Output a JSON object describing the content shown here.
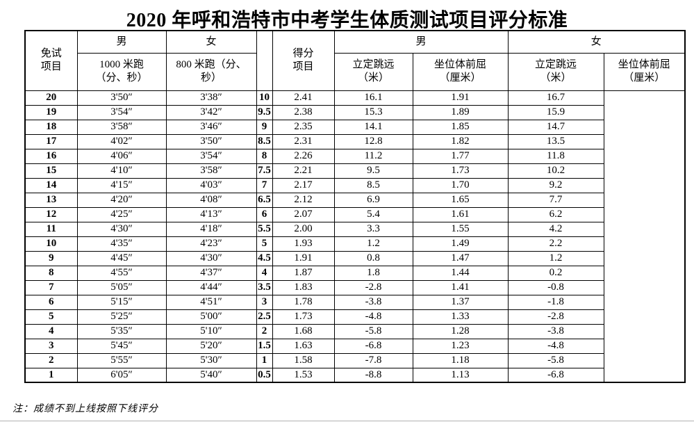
{
  "title": "2020 年呼和浩特市中考学生体质测试项目评分标准",
  "note": "注：成绩不到上线按照下线评分",
  "colors": {
    "text": "#000000",
    "border": "#000000",
    "background": "#ffffff",
    "bottom_rule": "#b3b3b3"
  },
  "left_table": {
    "corner_header": "免试\n项目",
    "gender_headers": [
      "男",
      "女"
    ],
    "sub_headers": [
      "1000 米跑\n（分、秒）",
      "800 米跑（分、\n秒）"
    ],
    "rows": [
      [
        "20",
        "3'50″",
        "3'38″"
      ],
      [
        "19",
        "3'54″",
        "3'42″"
      ],
      [
        "18",
        "3'58″",
        "3'46″"
      ],
      [
        "17",
        "4'02″",
        "3'50″"
      ],
      [
        "16",
        "4'06″",
        "3'54″"
      ],
      [
        "15",
        "4'10″",
        "3'58″"
      ],
      [
        "14",
        "4'15″",
        "4'03″"
      ],
      [
        "13",
        "4'20″",
        "4'08″"
      ],
      [
        "12",
        "4'25″",
        "4'13″"
      ],
      [
        "11",
        "4'30″",
        "4'18″"
      ],
      [
        "10",
        "4'35″",
        "4'23″"
      ],
      [
        "9",
        "4'45″",
        "4'30″"
      ],
      [
        "8",
        "4'55″",
        "4'37″"
      ],
      [
        "7",
        "5'05″",
        "4'44″"
      ],
      [
        "6",
        "5'15″",
        "4'51″"
      ],
      [
        "5",
        "5'25″",
        "5'00″"
      ],
      [
        "4",
        "5'35″",
        "5'10″"
      ],
      [
        "3",
        "5'45″",
        "5'20″"
      ],
      [
        "2",
        "5'55″",
        "5'30″"
      ],
      [
        "1",
        "6'05″",
        "5'40″"
      ]
    ]
  },
  "right_table": {
    "corner_header": "得分\n项目",
    "gender_headers": [
      "男",
      "女"
    ],
    "sub_headers": [
      "立定跳远\n（米）",
      "坐位体前屈\n（厘米）",
      "立定跳远\n（米）",
      "坐位体前屈\n（厘米）"
    ],
    "rows": [
      [
        "10",
        "2.41",
        "16.1",
        "1.91",
        "16.7"
      ],
      [
        "9.5",
        "2.38",
        "15.3",
        "1.89",
        "15.9"
      ],
      [
        "9",
        "2.35",
        "14.1",
        "1.85",
        "14.7"
      ],
      [
        "8.5",
        "2.31",
        "12.8",
        "1.82",
        "13.5"
      ],
      [
        "8",
        "2.26",
        "11.2",
        "1.77",
        "11.8"
      ],
      [
        "7.5",
        "2.21",
        "9.5",
        "1.73",
        "10.2"
      ],
      [
        "7",
        "2.17",
        "8.5",
        "1.70",
        "9.2"
      ],
      [
        "6.5",
        "2.12",
        "6.9",
        "1.65",
        "7.7"
      ],
      [
        "6",
        "2.07",
        "5.4",
        "1.61",
        "6.2"
      ],
      [
        "5.5",
        "2.00",
        "3.3",
        "1.55",
        "4.2"
      ],
      [
        "5",
        "1.93",
        "1.2",
        "1.49",
        "2.2"
      ],
      [
        "4.5",
        "1.91",
        "0.8",
        "1.47",
        "1.2"
      ],
      [
        "4",
        "1.87",
        "1.8",
        "1.44",
        "0.2"
      ],
      [
        "3.5",
        "1.83",
        "-2.8",
        "1.41",
        "-0.8"
      ],
      [
        "3",
        "1.78",
        "-3.8",
        "1.37",
        "-1.8"
      ],
      [
        "2.5",
        "1.73",
        "-4.8",
        "1.33",
        "-2.8"
      ],
      [
        "2",
        "1.68",
        "-5.8",
        "1.28",
        "-3.8"
      ],
      [
        "1.5",
        "1.63",
        "-6.8",
        "1.23",
        "-4.8"
      ],
      [
        "1",
        "1.58",
        "-7.8",
        "1.18",
        "-5.8"
      ],
      [
        "0.5",
        "1.53",
        "-8.8",
        "1.13",
        "-6.8"
      ]
    ]
  }
}
